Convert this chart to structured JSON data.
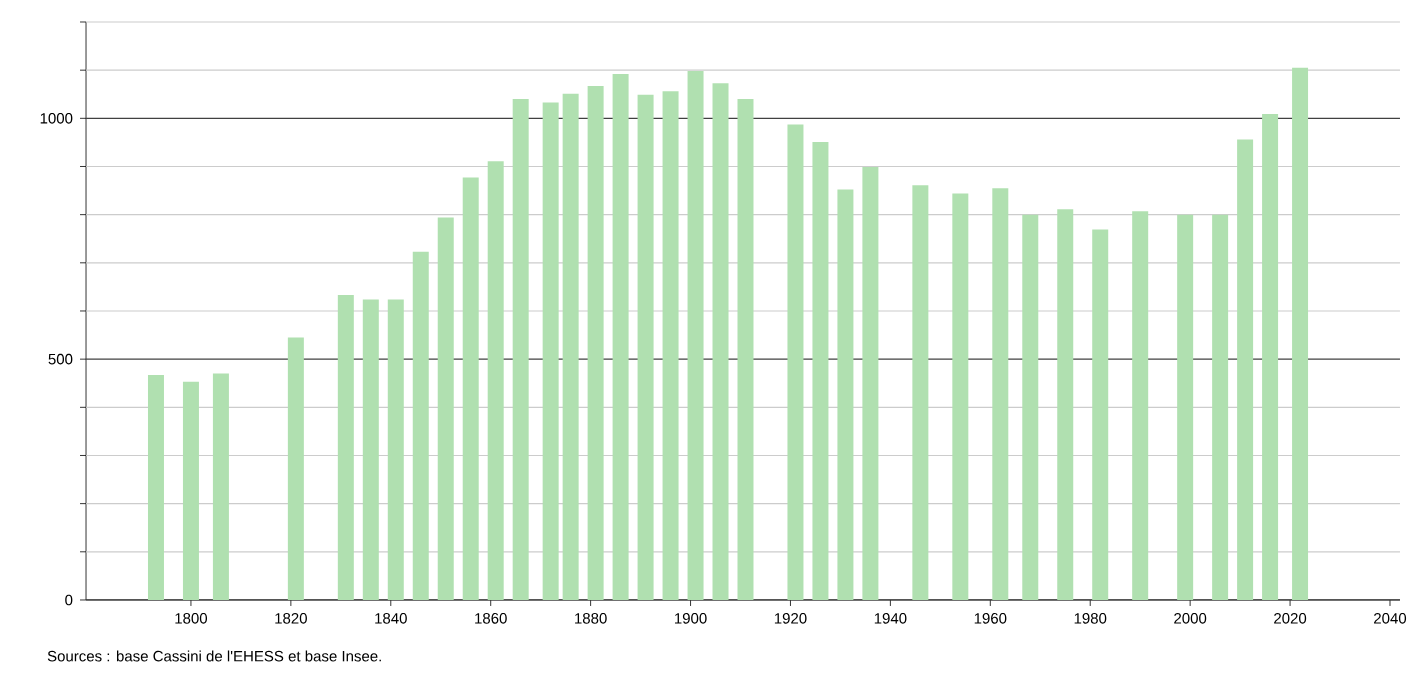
{
  "chart_data": {
    "type": "bar",
    "x": [
      1793,
      1800,
      1806,
      1821,
      1831,
      1836,
      1841,
      1846,
      1851,
      1856,
      1861,
      1866,
      1872,
      1876,
      1881,
      1886,
      1891,
      1896,
      1901,
      1906,
      1911,
      1921,
      1926,
      1931,
      1936,
      1946,
      1954,
      1962,
      1968,
      1975,
      1982,
      1990,
      1999,
      2006,
      2011,
      2016,
      2022
    ],
    "values": [
      467,
      453,
      470,
      545,
      633,
      624,
      624,
      723,
      794,
      877,
      911,
      1040,
      1033,
      1051,
      1067,
      1092,
      1049,
      1056,
      1098,
      1073,
      1040,
      987,
      951,
      852,
      899,
      861,
      844,
      855,
      800,
      811,
      769,
      807,
      800,
      800,
      956,
      1009,
      1105
    ],
    "color": "#b0e0b0",
    "xlim": [
      1779,
      2042
    ],
    "xticks": [
      1800,
      1820,
      1840,
      1860,
      1880,
      1900,
      1920,
      1940,
      1960,
      1980,
      2000,
      2020,
      2040
    ],
    "ylim": [
      0,
      1200
    ],
    "yticks": [
      0,
      {
        "value": 100,
        "label": null
      },
      {
        "value": 200,
        "label": null
      },
      {
        "value": 300,
        "label": null
      },
      {
        "value": 400,
        "label": null
      },
      500,
      {
        "value": 600,
        "label": null
      },
      {
        "value": 700,
        "label": null
      },
      {
        "value": 800,
        "label": null
      },
      {
        "value": 900,
        "label": null
      },
      1000,
      {
        "value": 1100,
        "label": null
      },
      {
        "value": 1200,
        "label": null
      }
    ],
    "grid": "y",
    "annotations": [
      "Sources : base Cassini de l'EHESS et base Insee."
    ]
  }
}
